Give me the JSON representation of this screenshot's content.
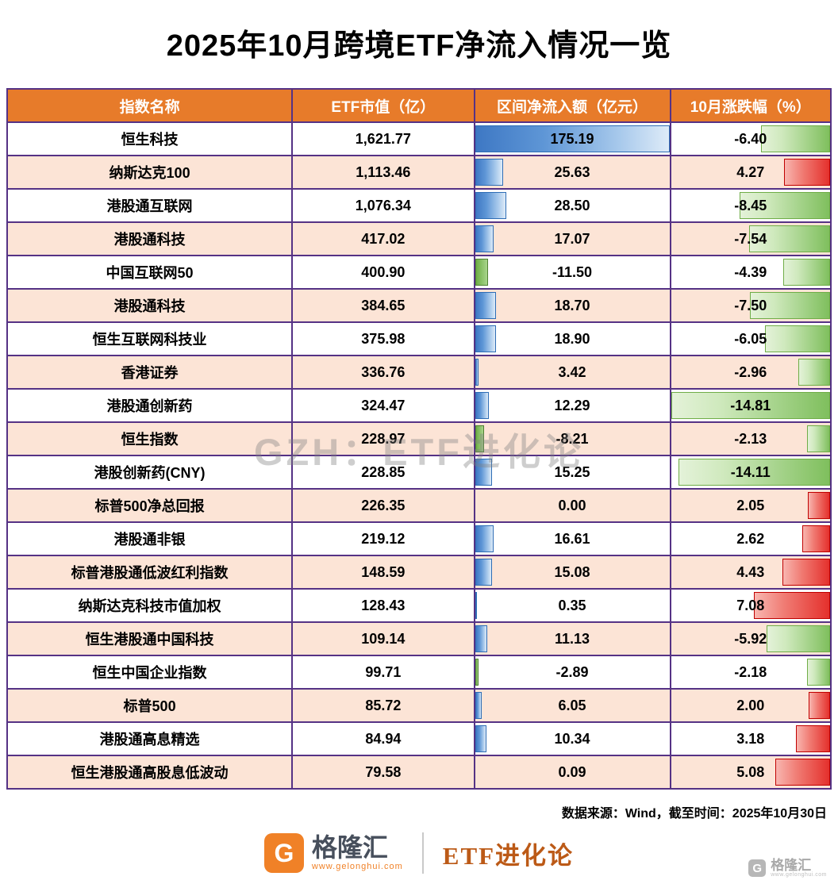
{
  "title": "2025年10月跨境ETF净流入情况一览",
  "watermark": "GZH：ETF进化论",
  "source_note": "数据来源：Wind，截至时间：2025年10月30日",
  "footer": {
    "brand": "格隆汇",
    "brand_initial": "G",
    "brand_url": "www.gelonghui.com",
    "channel": "ETF进化论",
    "corner_brand": "格隆汇",
    "corner_initial": "G",
    "corner_url": "www.gelonghui.com"
  },
  "colors": {
    "header_bg": "#E77B2A",
    "alt_row_bg": "#FCE4D6",
    "grid_border": "#553285",
    "positive_inflow_bar": "#3E78C4",
    "negative_inflow_bar": "#6DAE45",
    "positive_change_bar": "#E4302C",
    "negative_change_bar": "#7FBF5D",
    "brand_orange": "#F08127",
    "channel_text": "#BC5A17"
  },
  "chart_data": {
    "type": "table",
    "title": "2025年10月跨境ETF净流入情况一览",
    "columns": [
      "指数名称",
      "ETF市值（亿）",
      "区间净流入额（亿元）",
      "10月涨跌幅（%）"
    ],
    "bar_scale": {
      "inflow_max_abs": 175.19,
      "change_max_abs": 14.81
    },
    "rows": [
      {
        "name": "恒生科技",
        "mcap": "1,621.77",
        "inflow": 175.19,
        "inflow_text": "175.19",
        "change": -6.4,
        "change_text": "-6.40"
      },
      {
        "name": "纳斯达克100",
        "mcap": "1,113.46",
        "inflow": 25.63,
        "inflow_text": "25.63",
        "change": 4.27,
        "change_text": "4.27"
      },
      {
        "name": "港股通互联网",
        "mcap": "1,076.34",
        "inflow": 28.5,
        "inflow_text": "28.50",
        "change": -8.45,
        "change_text": "-8.45"
      },
      {
        "name": "港股通科技",
        "mcap": "417.02",
        "inflow": 17.07,
        "inflow_text": "17.07",
        "change": -7.54,
        "change_text": "-7.54"
      },
      {
        "name": "中国互联网50",
        "mcap": "400.90",
        "inflow": -11.5,
        "inflow_text": "-11.50",
        "change": -4.39,
        "change_text": "-4.39"
      },
      {
        "name": "港股通科技",
        "mcap": "384.65",
        "inflow": 18.7,
        "inflow_text": "18.70",
        "change": -7.5,
        "change_text": "-7.50"
      },
      {
        "name": "恒生互联网科技业",
        "mcap": "375.98",
        "inflow": 18.9,
        "inflow_text": "18.90",
        "change": -6.05,
        "change_text": "-6.05"
      },
      {
        "name": "香港证券",
        "mcap": "336.76",
        "inflow": 3.42,
        "inflow_text": "3.42",
        "change": -2.96,
        "change_text": "-2.96"
      },
      {
        "name": "港股通创新药",
        "mcap": "324.47",
        "inflow": 12.29,
        "inflow_text": "12.29",
        "change": -14.81,
        "change_text": "-14.81"
      },
      {
        "name": "恒生指数",
        "mcap": "228.97",
        "inflow": -8.21,
        "inflow_text": "-8.21",
        "change": -2.13,
        "change_text": "-2.13"
      },
      {
        "name": "港股创新药(CNY)",
        "mcap": "228.85",
        "inflow": 15.25,
        "inflow_text": "15.25",
        "change": -14.11,
        "change_text": "-14.11"
      },
      {
        "name": "标普500净总回报",
        "mcap": "226.35",
        "inflow": 0.0,
        "inflow_text": "0.00",
        "change": 2.05,
        "change_text": "2.05"
      },
      {
        "name": "港股通非银",
        "mcap": "219.12",
        "inflow": 16.61,
        "inflow_text": "16.61",
        "change": 2.62,
        "change_text": "2.62"
      },
      {
        "name": "标普港股通低波红利指数",
        "mcap": "148.59",
        "inflow": 15.08,
        "inflow_text": "15.08",
        "change": 4.43,
        "change_text": "4.43"
      },
      {
        "name": "纳斯达克科技市值加权",
        "mcap": "128.43",
        "inflow": 0.35,
        "inflow_text": "0.35",
        "change": 7.08,
        "change_text": "7.08"
      },
      {
        "name": "恒生港股通中国科技",
        "mcap": "109.14",
        "inflow": 11.13,
        "inflow_text": "11.13",
        "change": -5.92,
        "change_text": "-5.92"
      },
      {
        "name": "恒生中国企业指数",
        "mcap": "99.71",
        "inflow": -2.89,
        "inflow_text": "-2.89",
        "change": -2.18,
        "change_text": "-2.18"
      },
      {
        "name": "标普500",
        "mcap": "85.72",
        "inflow": 6.05,
        "inflow_text": "6.05",
        "change": 2.0,
        "change_text": "2.00"
      },
      {
        "name": "港股通高息精选",
        "mcap": "84.94",
        "inflow": 10.34,
        "inflow_text": "10.34",
        "change": 3.18,
        "change_text": "3.18"
      },
      {
        "name": "恒生港股通高股息低波动",
        "mcap": "79.58",
        "inflow": 0.09,
        "inflow_text": "0.09",
        "change": 5.08,
        "change_text": "5.08"
      }
    ]
  }
}
